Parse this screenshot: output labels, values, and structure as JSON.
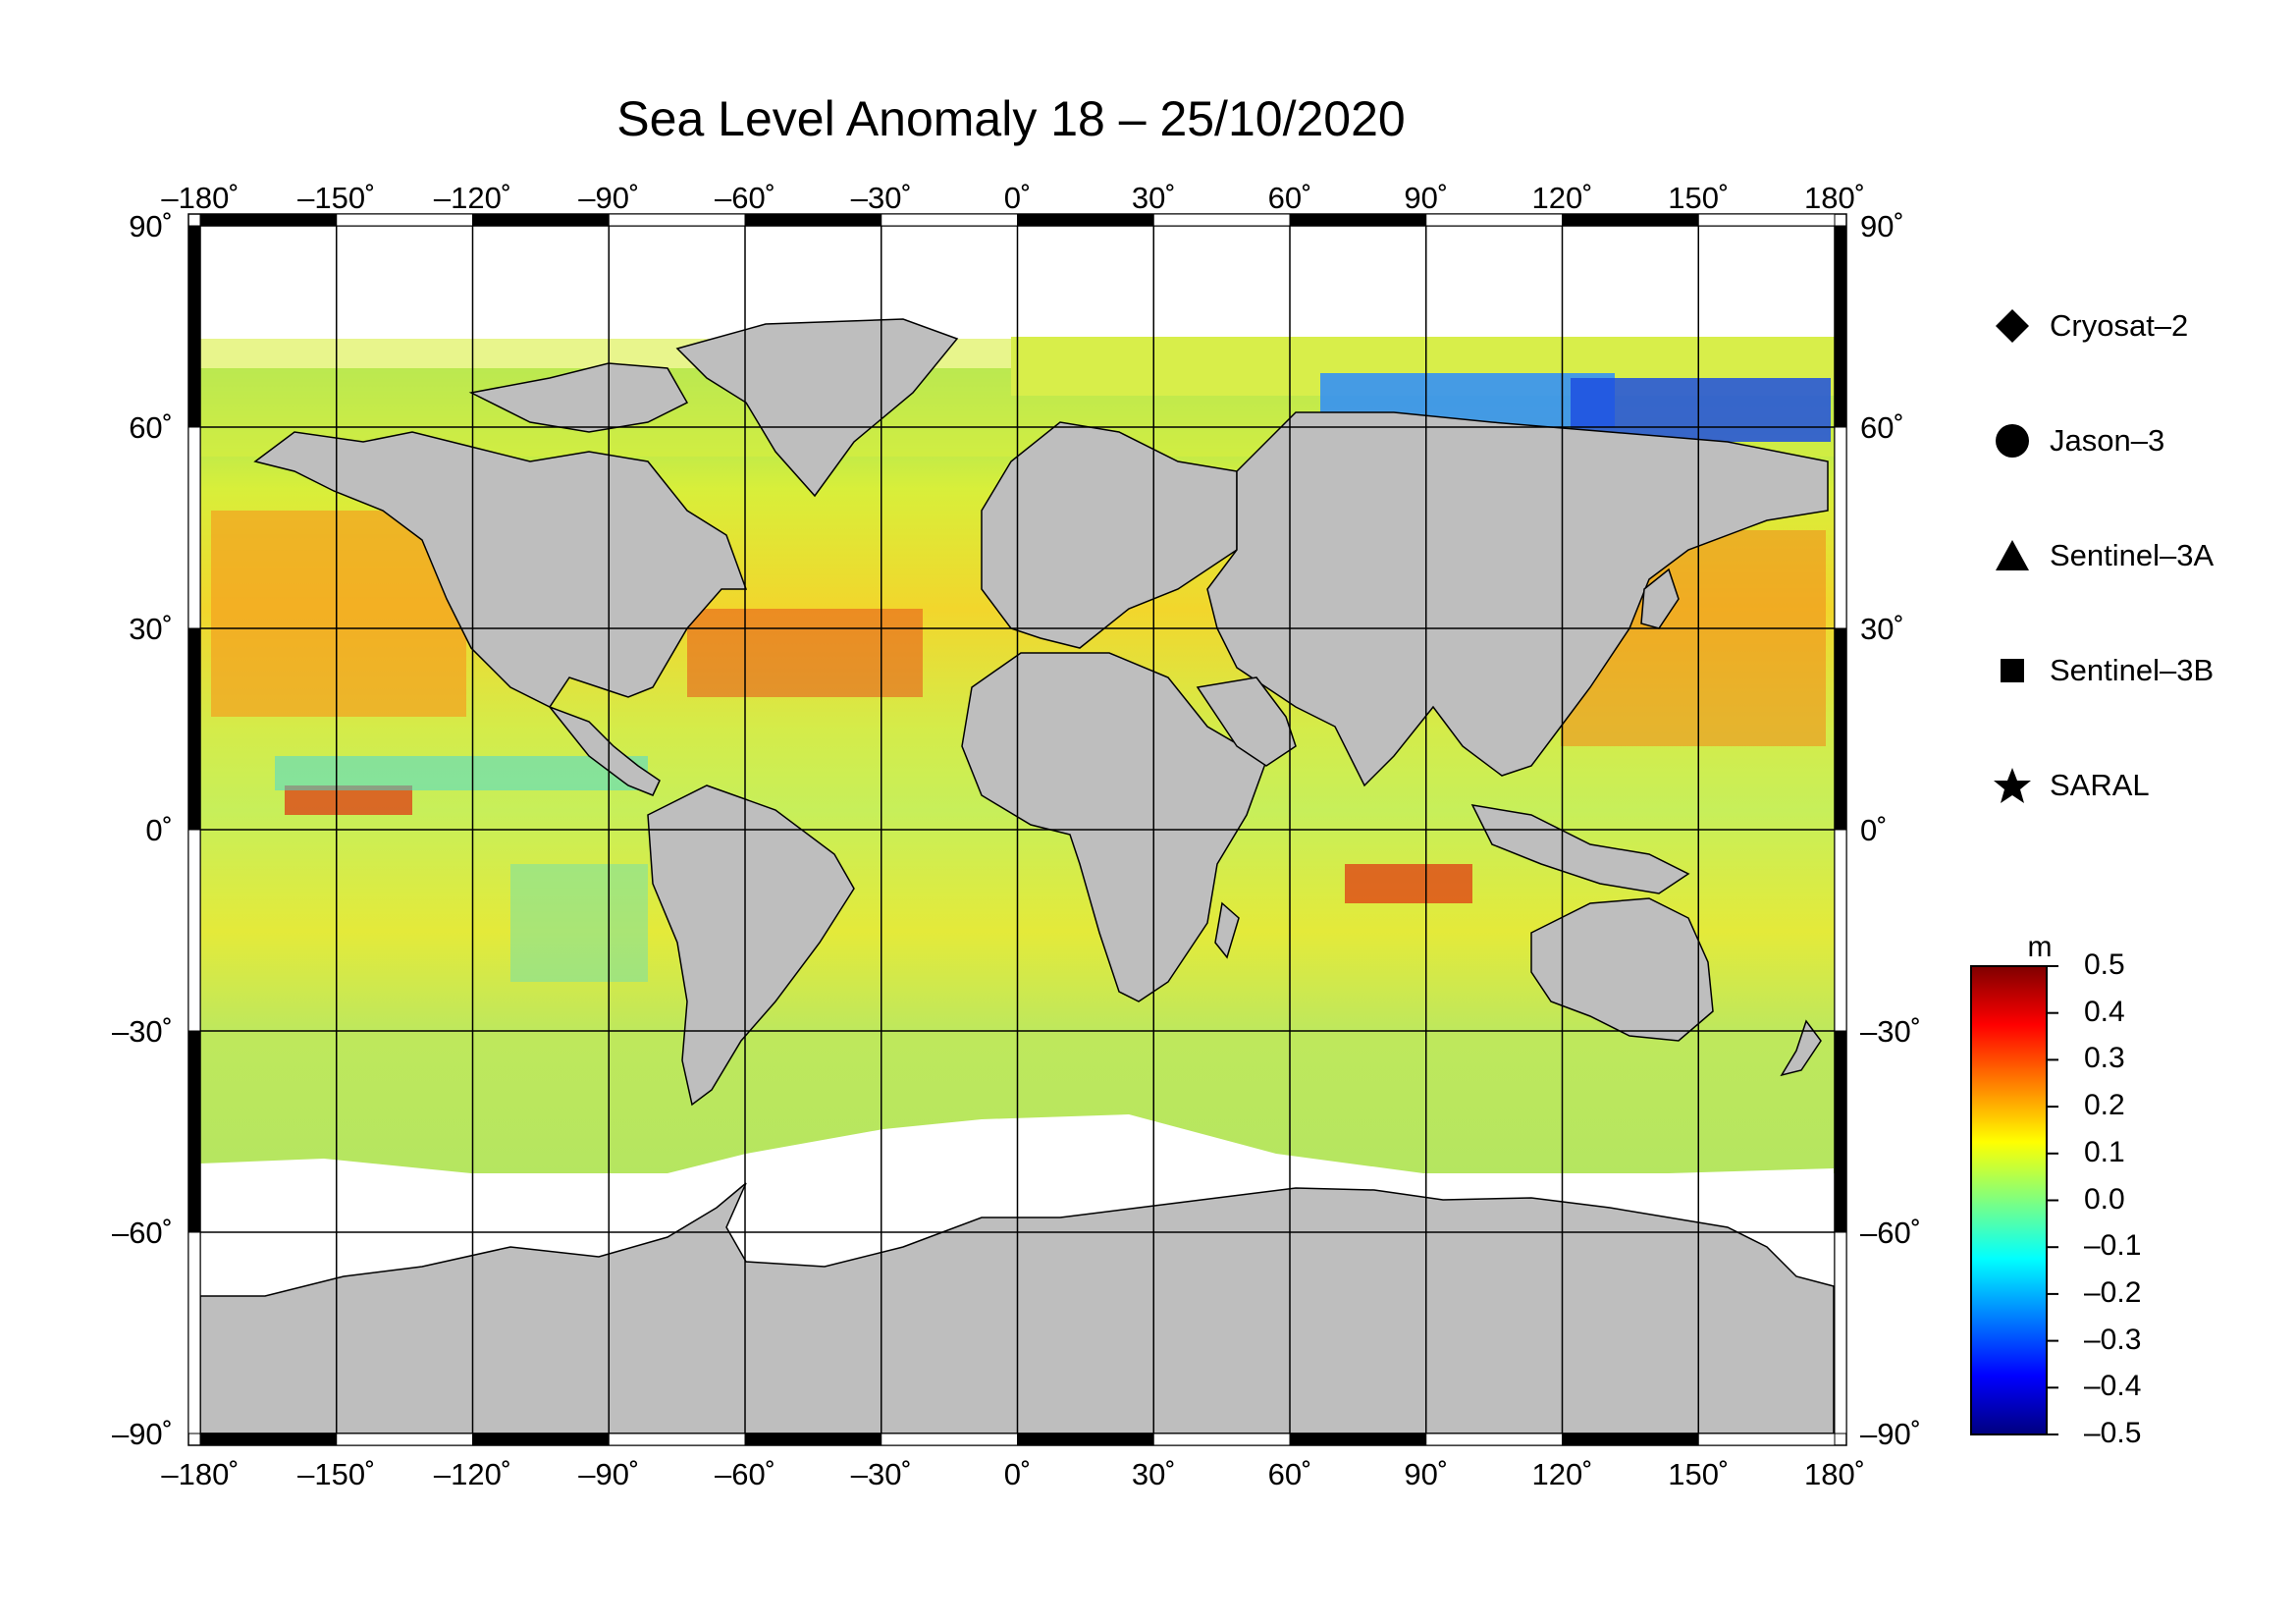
{
  "title": "Sea Level Anomaly 18 – 25/10/2020",
  "map": {
    "projection": "equirectangular",
    "lon_range": [
      -180,
      180
    ],
    "lat_range": [
      -90,
      90
    ],
    "gridline_spacing_deg": 30,
    "x_ticks": [
      "–180˚",
      "–150˚",
      "–120˚",
      "–90˚",
      "–60˚",
      "–30˚",
      "0˚",
      "30˚",
      "60˚",
      "90˚",
      "120˚",
      "150˚",
      "180˚"
    ],
    "y_ticks": [
      "90˚",
      "60˚",
      "30˚",
      "0˚",
      "–30˚",
      "–60˚",
      "–90˚"
    ],
    "land_color": "#bebebe",
    "ice_color": "#ffffff"
  },
  "legend": {
    "items": [
      {
        "name": "Cryosat–2",
        "symbol": "diamond"
      },
      {
        "name": "Jason–3",
        "symbol": "circle"
      },
      {
        "name": "Sentinel–3A",
        "symbol": "triangle"
      },
      {
        "name": "Sentinel–3B",
        "symbol": "square"
      },
      {
        "name": "SARAL",
        "symbol": "star"
      }
    ]
  },
  "colorbar": {
    "unit": "m",
    "min": -0.5,
    "max": 0.5,
    "labels": [
      "0.5",
      "0.4",
      "0.3",
      "0.2",
      "0.1",
      "0.0",
      "–0.1",
      "–0.2",
      "–0.3",
      "–0.4",
      "–0.5"
    ],
    "colors": [
      "#00007f",
      "#0000ff",
      "#007fff",
      "#00ffff",
      "#7fff7f",
      "#ffff00",
      "#ff7f00",
      "#ff0000",
      "#7f0000"
    ]
  }
}
